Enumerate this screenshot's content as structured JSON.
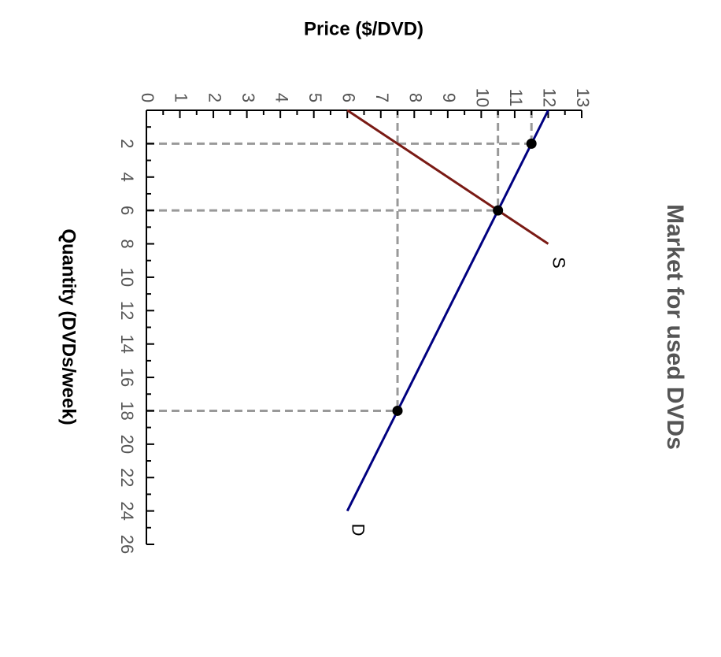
{
  "chart_data": {
    "type": "line",
    "title": "Market for used DVDs",
    "xlabel": "Quantity (DVDs/week)",
    "ylabel": "Price ($/DVD)",
    "xlim": [
      0,
      26
    ],
    "ylim": [
      0,
      13
    ],
    "x_ticks": [
      2,
      4,
      6,
      8,
      10,
      12,
      14,
      16,
      18,
      20,
      22,
      24,
      26
    ],
    "y_ticks": [
      0,
      1,
      2,
      3,
      4,
      5,
      6,
      7,
      8,
      9,
      10,
      11,
      12,
      13
    ],
    "series": [
      {
        "name": "D",
        "color": "#000080",
        "x": [
          0,
          24
        ],
        "y": [
          12,
          6
        ]
      },
      {
        "name": "S",
        "color": "#7a1a14",
        "x": [
          0,
          8
        ],
        "y": [
          6,
          12
        ]
      }
    ],
    "points": [
      {
        "x": 2,
        "y": 11.5
      },
      {
        "x": 6,
        "y": 10.5
      },
      {
        "x": 18,
        "y": 7.5
      }
    ],
    "guide_color": "#999999",
    "grid": false,
    "orientation": "rotated 90 degrees clockwise"
  }
}
